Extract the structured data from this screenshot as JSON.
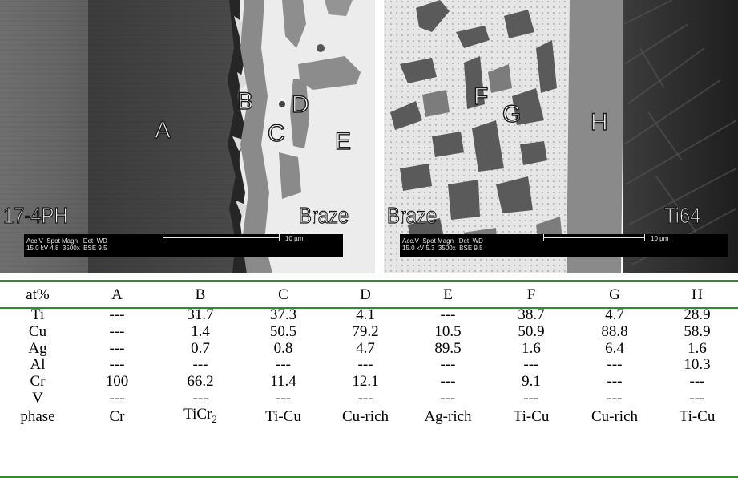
{
  "figure": {
    "left_panel": {
      "region_labels": {
        "A": "A",
        "B": "B",
        "C": "C",
        "D": "D",
        "E": "E"
      },
      "material_left": "17-4PH",
      "material_right": "Braze",
      "info_row1": "Acc.V  Spot Magn   Det  WD",
      "info_row2": "15.0 kV 4.8  3500x  BSE 9.5",
      "scale_label": "10 µm"
    },
    "right_panel": {
      "region_labels": {
        "F": "F",
        "G": "G",
        "H": "H"
      },
      "material_left": "Braze",
      "material_right": "Ti64",
      "info_row1": "Acc.V  Spot Magn   Det  WD",
      "info_row2": "15.0 kV 5.3  3500x  BSE 9.5",
      "scale_label": "10 µm"
    }
  },
  "table": {
    "header": [
      "at%",
      "A",
      "B",
      "C",
      "D",
      "E",
      "F",
      "G",
      "H"
    ],
    "rows": [
      [
        "Ti",
        "---",
        "31.7",
        "37.3",
        "4.1",
        "---",
        "38.7",
        "4.7",
        "28.9"
      ],
      [
        "Cu",
        "---",
        "1.4",
        "50.5",
        "79.2",
        "10.5",
        "50.9",
        "88.8",
        "58.9"
      ],
      [
        "Ag",
        "---",
        "0.7",
        "0.8",
        "4.7",
        "89.5",
        "1.6",
        "6.4",
        "1.6"
      ],
      [
        "Al",
        "---",
        "---",
        "---",
        "---",
        "---",
        "---",
        "---",
        "10.3"
      ],
      [
        "Cr",
        "100",
        "66.2",
        "11.4",
        "12.1",
        "---",
        "9.1",
        "---",
        "---"
      ],
      [
        "V",
        "---",
        "---",
        "---",
        "---",
        "---",
        "---",
        "---",
        "---"
      ]
    ],
    "phase_row": {
      "label": "phase",
      "A": "Cr",
      "B_base": "TiCr",
      "B_sub": "2",
      "C": "Ti-Cu",
      "D": "Cu-rich",
      "E": "Ag-rich",
      "F": "Ti-Cu",
      "G": "Cu-rich",
      "H": "Ti-Cu"
    },
    "rule_color": "#2e8b2e"
  }
}
